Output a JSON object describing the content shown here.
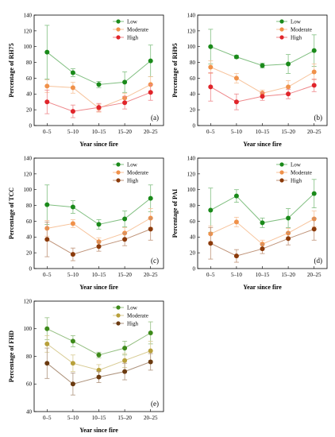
{
  "chart_data": [
    {
      "type": "line",
      "panel_label": "(a)",
      "xlabel": "Year since fire",
      "ylabel": "Percentage of RH75",
      "categories": [
        "0–5",
        "5–10",
        "10–15",
        "15–20",
        "20–25"
      ],
      "ylim": [
        0,
        140
      ],
      "yticks": [
        0,
        20,
        40,
        60,
        80,
        100,
        120,
        140
      ],
      "legend_position": "top-right",
      "series": [
        {
          "name": "Low",
          "color": "#1a8a1a",
          "values": [
            93,
            67,
            52,
            55,
            82
          ],
          "errors": [
            34,
            5,
            4,
            13,
            20
          ]
        },
        {
          "name": "Moderate",
          "color": "#f0914a",
          "values": [
            50,
            48,
            22,
            35,
            52
          ],
          "errors": [
            8,
            7,
            5,
            6,
            10
          ]
        },
        {
          "name": "High",
          "color": "#e0242a",
          "values": [
            30,
            18,
            23,
            29,
            42
          ],
          "errors": [
            15,
            8,
            5,
            8,
            10
          ]
        }
      ]
    },
    {
      "type": "line",
      "panel_label": "(b)",
      "xlabel": "Year since fire",
      "ylabel": "Percentage of RH95",
      "categories": [
        "0–5",
        "5–10",
        "10–15",
        "15–20",
        "20–25"
      ],
      "ylim": [
        0,
        140
      ],
      "yticks": [
        0,
        20,
        40,
        60,
        80,
        100,
        120,
        140
      ],
      "legend_position": "top-right",
      "series": [
        {
          "name": "Low",
          "color": "#1a8a1a",
          "values": [
            100,
            87,
            76,
            78,
            95
          ],
          "errors": [
            22,
            2,
            3,
            12,
            20
          ]
        },
        {
          "name": "Moderate",
          "color": "#f0914a",
          "values": [
            74,
            60,
            41,
            49,
            68
          ],
          "errors": [
            8,
            6,
            4,
            8,
            10
          ]
        },
        {
          "name": "High",
          "color": "#e0242a",
          "values": [
            49,
            30,
            37,
            40,
            51
          ],
          "errors": [
            18,
            10,
            5,
            6,
            8
          ]
        }
      ]
    },
    {
      "type": "line",
      "panel_label": "(c)",
      "xlabel": "Year since fire",
      "ylabel": "Percentage of TCC",
      "categories": [
        "0–5",
        "5–10",
        "10–15",
        "15–20",
        "20–25"
      ],
      "ylim": [
        0,
        140
      ],
      "yticks": [
        0,
        20,
        40,
        60,
        80,
        100,
        120,
        140
      ],
      "legend_position": "top-right",
      "series": [
        {
          "name": "Low",
          "color": "#1a8a1a",
          "values": [
            81,
            78,
            56,
            63,
            89
          ],
          "errors": [
            25,
            8,
            6,
            10,
            17
          ]
        },
        {
          "name": "Moderate",
          "color": "#f0914a",
          "values": [
            51,
            57,
            34,
            45,
            64
          ],
          "errors": [
            10,
            5,
            5,
            7,
            12
          ]
        },
        {
          "name": "High",
          "color": "#8b3a0a",
          "values": [
            37,
            18,
            28,
            37,
            50
          ],
          "errors": [
            22,
            8,
            6,
            8,
            14
          ]
        }
      ]
    },
    {
      "type": "line",
      "panel_label": "(d)",
      "xlabel": "Year since fire",
      "ylabel": "Percentage of PAI",
      "categories": [
        "0–5",
        "5–10",
        "10–15",
        "15–20",
        "20–25"
      ],
      "ylim": [
        0,
        140
      ],
      "yticks": [
        0,
        20,
        40,
        60,
        80,
        100,
        120,
        140
      ],
      "legend_position": "top-right",
      "series": [
        {
          "name": "Low",
          "color": "#1a8a1a",
          "values": [
            74,
            92,
            58,
            64,
            95
          ],
          "errors": [
            28,
            8,
            6,
            12,
            18
          ]
        },
        {
          "name": "Moderate",
          "color": "#f0914a",
          "values": [
            44,
            59,
            31,
            45,
            63
          ],
          "errors": [
            10,
            6,
            5,
            6,
            10
          ]
        },
        {
          "name": "High",
          "color": "#8b3a0a",
          "values": [
            32,
            16,
            25,
            38,
            50
          ],
          "errors": [
            20,
            8,
            6,
            8,
            14
          ]
        }
      ]
    },
    {
      "type": "line",
      "panel_label": "(e)",
      "xlabel": "Year since fire",
      "ylabel": "Percentage of FHD",
      "categories": [
        "0–5",
        "5–10",
        "10–15",
        "15–20",
        "20–25"
      ],
      "ylim": [
        40,
        120
      ],
      "yticks": [
        40,
        60,
        80,
        100,
        120
      ],
      "legend_position": "top-right",
      "series": [
        {
          "name": "Low",
          "color": "#3d8a1a",
          "values": [
            100,
            91,
            81,
            86,
            97
          ],
          "errors": [
            8,
            4,
            2,
            5,
            8
          ]
        },
        {
          "name": "Moderate",
          "color": "#b8a03a",
          "values": [
            89,
            75,
            70,
            77,
            84
          ],
          "errors": [
            6,
            6,
            4,
            5,
            7
          ]
        },
        {
          "name": "High",
          "color": "#6b3a10",
          "values": [
            75,
            60,
            65,
            69,
            76
          ],
          "errors": [
            11,
            8,
            4,
            6,
            6
          ]
        }
      ]
    }
  ]
}
